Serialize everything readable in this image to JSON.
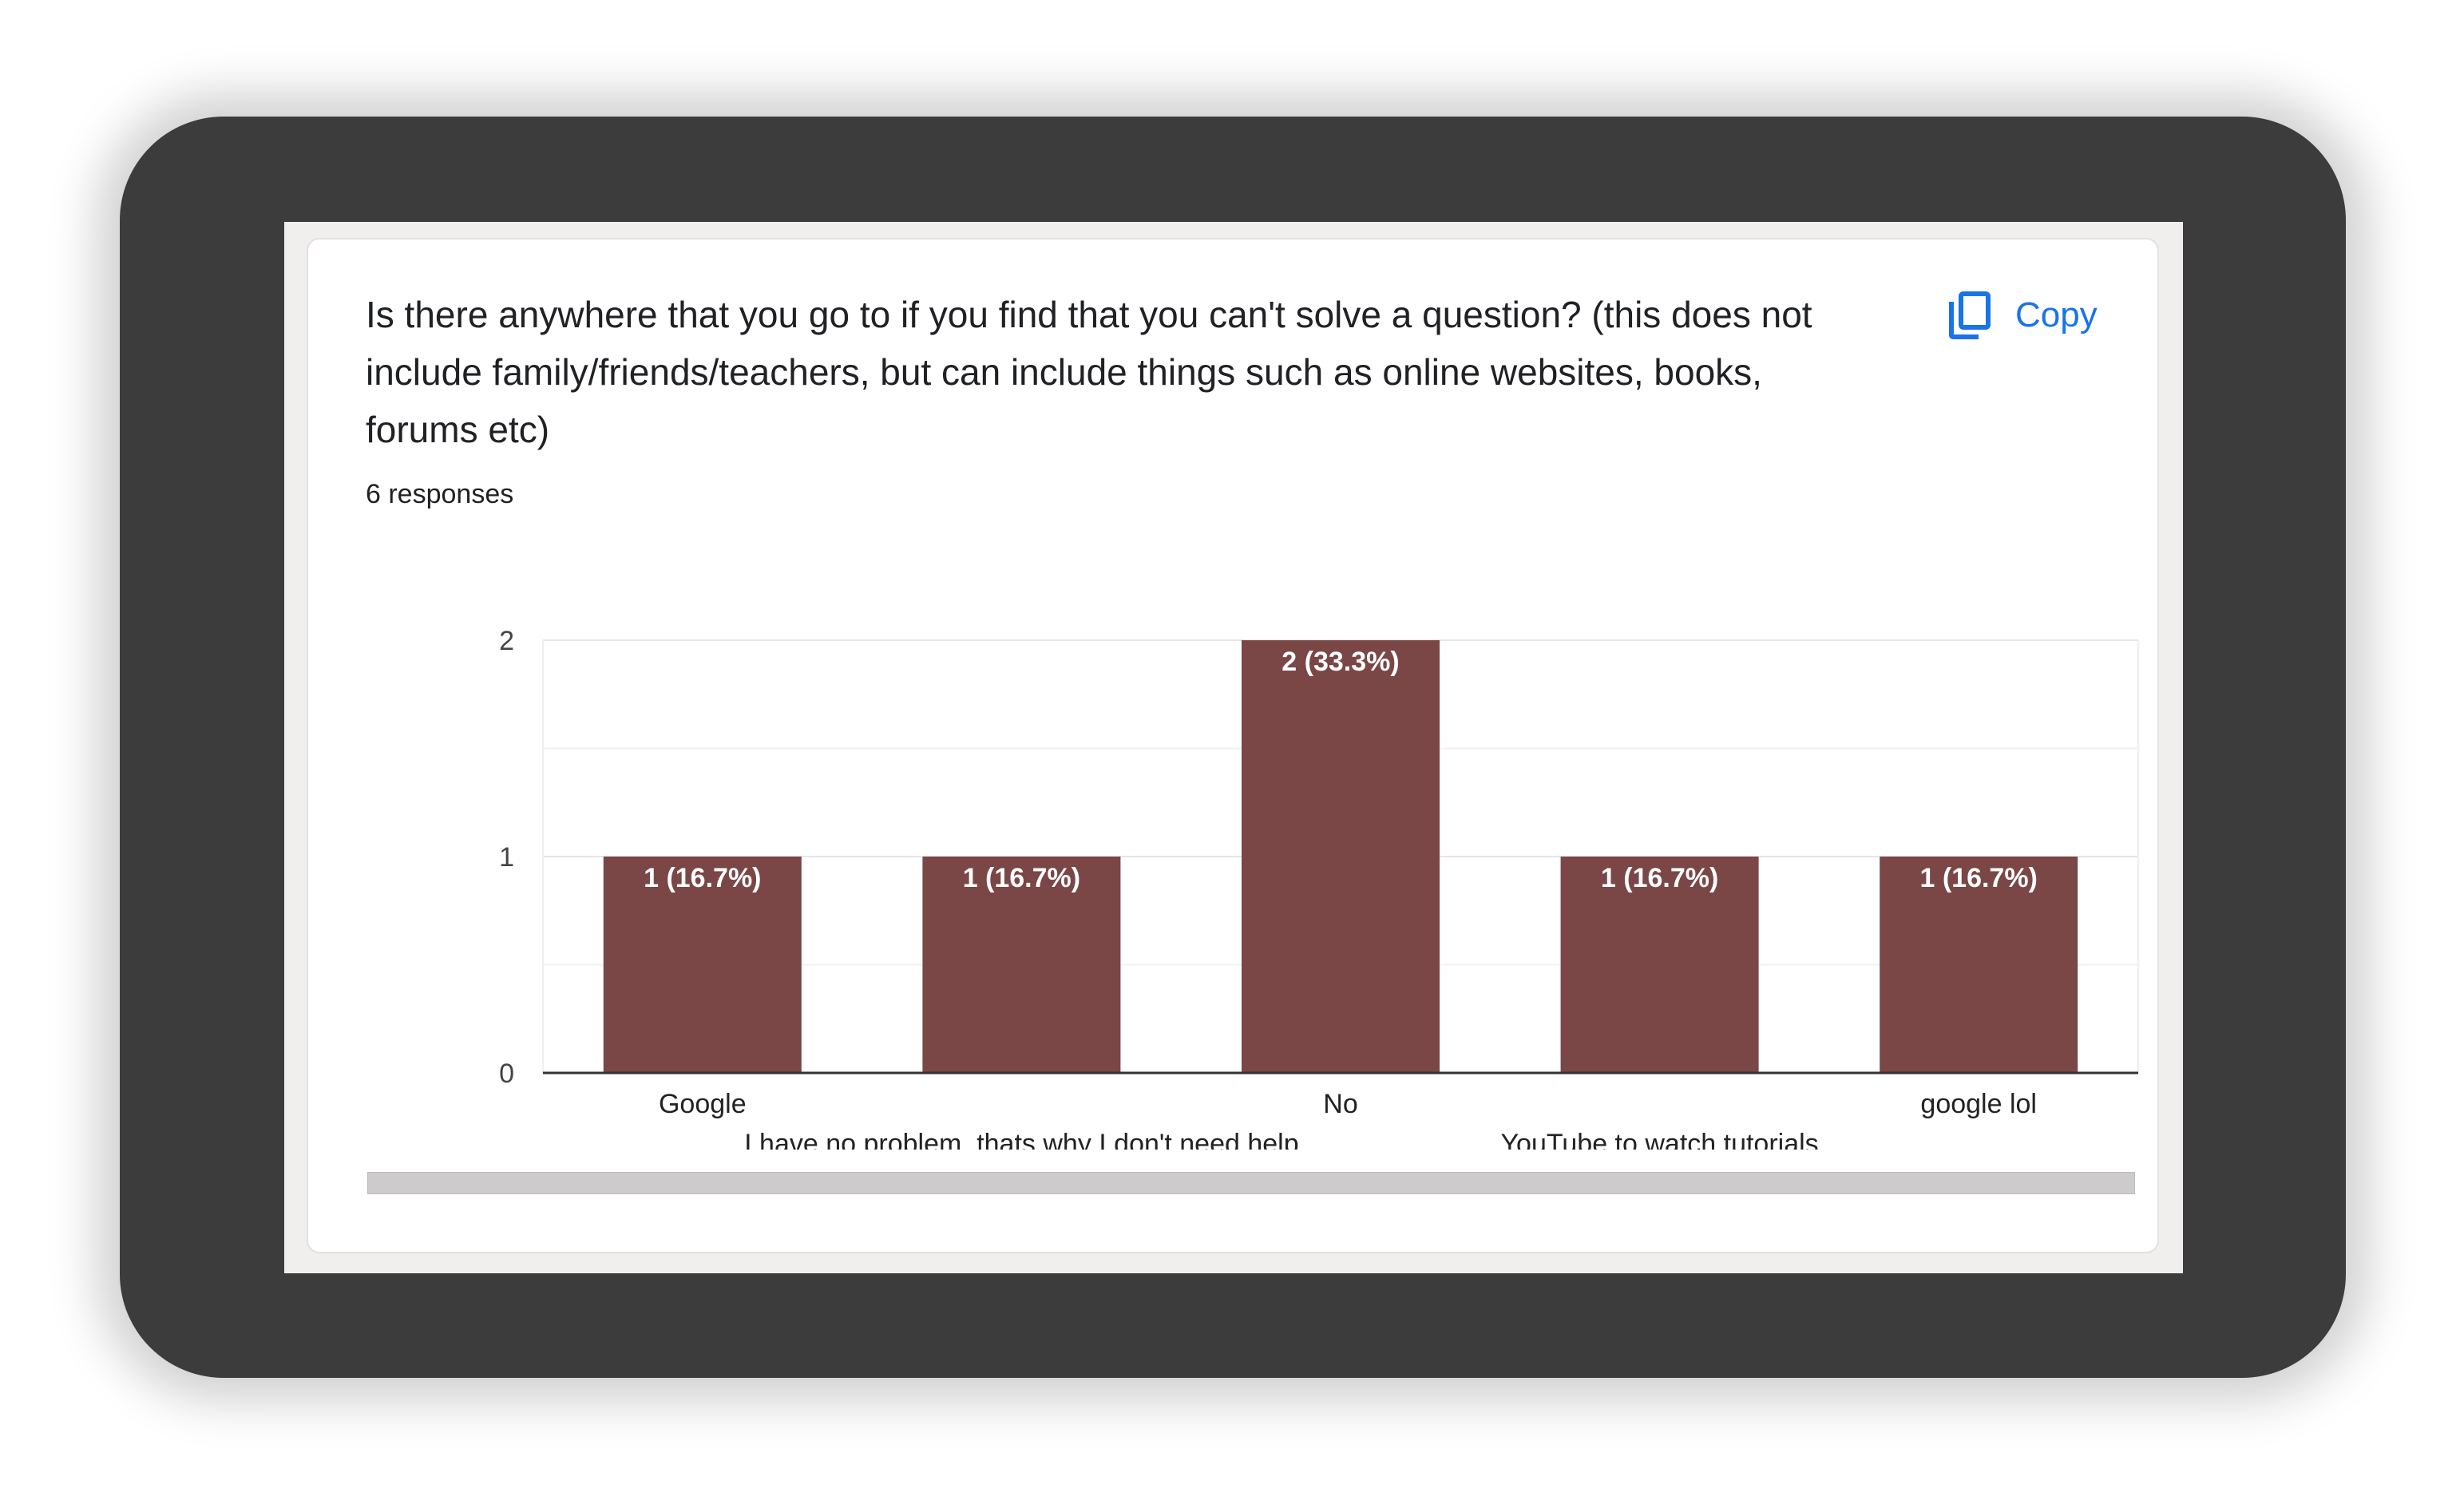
{
  "card": {
    "question": "Is there anywhere that you go to if you find that you can't solve a question? (this does not include family/friends/teachers, but can include things such as online websites, books, forums etc)",
    "responses": "6 responses",
    "copy_label": "Copy",
    "copy_icon": "copy-icon"
  },
  "colors": {
    "bar": "#7a4646",
    "accent": "#1a73e8",
    "frame": "#3c3c3c"
  },
  "chart_data": {
    "type": "bar",
    "categories": [
      "Google",
      "I have no problem, thats why I don't need help",
      "No",
      "YouTube to watch tutorials",
      "google lol"
    ],
    "values": [
      1,
      1,
      2,
      1,
      1
    ],
    "data_labels": [
      "1 (16.7%)",
      "1 (16.7%)",
      "2 (33.3%)",
      "1 (16.7%)",
      "1 (16.7%)"
    ],
    "yticks": [
      "0",
      "1",
      "2"
    ],
    "ylim": [
      0,
      2
    ],
    "grid": true,
    "title": "",
    "xlabel": "",
    "ylabel": ""
  }
}
